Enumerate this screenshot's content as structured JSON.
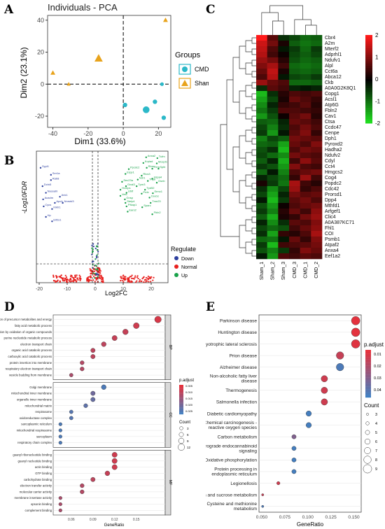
{
  "panel_labels": {
    "a": "A",
    "b": "B",
    "c": "C",
    "d": "D",
    "e": "E"
  },
  "colors": {
    "cmd": "#2bb8c8",
    "sham": "#e8a31c",
    "down": "#2d3f9e",
    "normal": "#e8201e",
    "up": "#19a24a",
    "heat_low": "#22e822",
    "heat_mid": "#000000",
    "heat_high": "#ff1a1a",
    "padj_low": "#e8303a",
    "padj_high": "#3b82c6"
  },
  "chart_data": [
    {
      "id": "pca",
      "type": "scatter",
      "title": "Individuals - PCA",
      "xlabel": "Dim1 (33.6%)",
      "ylabel": "Dim2 (23.1%)",
      "xlim": [
        -43,
        27
      ],
      "ylim": [
        -27,
        43
      ],
      "xticks": [
        -40,
        -20,
        0,
        20
      ],
      "yticks": [
        -20,
        0,
        20,
        40
      ],
      "legend_title": "Groups",
      "series": [
        {
          "name": "CMD",
          "shape": "circle",
          "points": [
            [
              1,
              -13
            ],
            [
              13,
              -16
            ],
            [
              18,
              -11
            ],
            [
              23,
              -21
            ],
            [
              22,
              0
            ]
          ],
          "sizes": [
            3,
            6,
            3,
            3,
            2
          ]
        },
        {
          "name": "Sham",
          "shape": "triangle",
          "points": [
            [
              -14,
              16
            ],
            [
              -40,
              7
            ],
            [
              -31,
              0
            ],
            [
              24,
              40
            ]
          ],
          "sizes": [
            7,
            3,
            2,
            3
          ]
        }
      ]
    },
    {
      "id": "volcano",
      "type": "scatter",
      "xlabel": "Log2FC",
      "ylabel": "-Log10FDR",
      "xlim": [
        -21,
        26
      ],
      "ylim": [
        0,
        30
      ],
      "xticks": [
        -20,
        -10,
        0,
        10,
        20
      ],
      "legend_title": "Regulate",
      "legend": [
        "Down",
        "Normal",
        "Up"
      ],
      "down_labels": [
        {
          "t": "Syyt1",
          "x": -19.5,
          "y": 26.2
        },
        {
          "t": "Ser1a",
          "x": -15.8,
          "y": 24.6
        },
        {
          "t": "Rab8",
          "x": -15.8,
          "y": 23.4
        },
        {
          "t": "Dctn5",
          "x": -18.8,
          "y": 22.0
        },
        {
          "t": "Naceahl",
          "x": -17.6,
          "y": 20.5
        },
        {
          "t": "Acadm",
          "x": -18.6,
          "y": 19.0
        },
        {
          "t": "Ank1",
          "x": -12.6,
          "y": 19.6
        },
        {
          "t": "Apoh",
          "x": -14.4,
          "y": 18.2
        },
        {
          "t": "Cycs",
          "x": -18.4,
          "y": 17.4
        },
        {
          "t": "Kiktr1",
          "x": -15.4,
          "y": 16.8
        },
        {
          "t": "Nnrstd3",
          "x": -11.6,
          "y": 18.2
        },
        {
          "t": "Hp",
          "x": -17.6,
          "y": 15.0
        },
        {
          "t": "Eif2s1",
          "x": -15.4,
          "y": 14.0
        }
      ],
      "up_labels": [
        {
          "t": "Tufm",
          "x": 22.2,
          "y": 28.4
        },
        {
          "t": "Anxa2",
          "x": 18.2,
          "y": 28.6
        },
        {
          "t": "Krpiad",
          "x": 17.2,
          "y": 27.3
        },
        {
          "t": "Mcept1",
          "x": 22.0,
          "y": 27.2
        },
        {
          "t": "Rbm",
          "x": 18.4,
          "y": 26.2
        },
        {
          "t": "Ppcdc2",
          "x": 12.0,
          "y": 25.9
        },
        {
          "t": "Pem",
          "x": 20.4,
          "y": 26.0
        },
        {
          "t": "Spib",
          "x": 22.6,
          "y": 26.0
        },
        {
          "t": "Erpp1",
          "x": 10.8,
          "y": 24.8
        },
        {
          "t": "Rtcs3",
          "x": 16.6,
          "y": 24.4
        },
        {
          "t": "Ndr1",
          "x": 15.2,
          "y": 23.5
        },
        {
          "t": "Hspa4",
          "x": 20.4,
          "y": 23.7
        },
        {
          "t": "Sec23a",
          "x": 9.6,
          "y": 23.0
        },
        {
          "t": "Trip6",
          "x": 18.8,
          "y": 23.2
        },
        {
          "t": "Gsnb",
          "x": 22.0,
          "y": 22.8
        },
        {
          "t": "Gnal3",
          "x": 11.0,
          "y": 22.0
        },
        {
          "t": "Tpm3",
          "x": 14.8,
          "y": 22.0
        },
        {
          "t": "Hvmps",
          "x": 9.0,
          "y": 21.2
        },
        {
          "t": "Tpd52",
          "x": 17.8,
          "y": 21.2
        },
        {
          "t": "Ubtf",
          "x": 11.2,
          "y": 20.5
        },
        {
          "t": "Prdx",
          "x": 16.6,
          "y": 20.3
        },
        {
          "t": "Srmc1",
          "x": 20.6,
          "y": 20.4
        },
        {
          "t": "Vat1",
          "x": 9.0,
          "y": 19.8
        },
        {
          "t": "Gnsp",
          "x": 10.6,
          "y": 19.0
        },
        {
          "t": "Cee1c",
          "x": 19.4,
          "y": 19.4
        },
        {
          "t": "Stelp4",
          "x": 10.8,
          "y": 18.2
        },
        {
          "t": "Tmn23",
          "x": 19.8,
          "y": 18.2
        },
        {
          "t": "Pfkap1",
          "x": 11.2,
          "y": 17.4
        },
        {
          "t": "Sparc",
          "x": 16.8,
          "y": 17.2
        },
        {
          "t": "Ears2",
          "x": 11.6,
          "y": 16.2
        },
        {
          "t": "Fbln2",
          "x": 20.4,
          "y": 15.6
        }
      ],
      "threshold_fdr": 1.3,
      "fc_lines": [
        -1,
        1
      ]
    },
    {
      "id": "heatmap",
      "type": "heatmap",
      "columns": [
        "Sham_1",
        "Sham_2",
        "Sham_3",
        "CMD_3",
        "CMD_1",
        "CMD_2"
      ],
      "rows": [
        "Cbr4",
        "A2m",
        "Mterf2",
        "Adprhl1",
        "Ndufv1",
        "Alpl",
        "Cct6a",
        "Abca12",
        "Ckb",
        "A0A0G2K8Q1",
        "Copg1",
        "Acsl1",
        "Atp6G",
        "Fbln2",
        "Cav1",
        "Ctsa",
        "Ccdc47",
        "Cenpe",
        "Dph1",
        "Pyroxd2",
        "Hadha2",
        "Ndufv2",
        "Cdyl",
        "Cct4",
        "Hmgcs2",
        "Cog4",
        "Popdc2",
        "Cdc42",
        "Prorsd1",
        "Dpp4",
        "Mthfd1",
        "Arfgef1",
        "Clic4",
        "A0A387KC71",
        "Fhl1",
        "COI",
        "Psmb1",
        "Atpaf2",
        "Anxa4",
        "Eef1a2"
      ],
      "color_range": [
        -2,
        2
      ],
      "colorbar_ticks": [
        2,
        1,
        0,
        -1,
        -2
      ],
      "values": [
        [
          2.0,
          0.7,
          -0.4,
          -0.6,
          -0.9,
          -0.8
        ],
        [
          1.6,
          0.9,
          0.2,
          -0.8,
          -1.0,
          -0.9
        ],
        [
          1.5,
          0.6,
          -0.2,
          -0.5,
          -0.9,
          -0.5
        ],
        [
          1.4,
          0.5,
          0.1,
          -0.6,
          -0.8,
          -0.6
        ],
        [
          1.2,
          0.9,
          0.3,
          -0.7,
          -0.9,
          -0.8
        ],
        [
          1.0,
          1.3,
          0.5,
          -0.9,
          -1.0,
          -0.9
        ],
        [
          0.8,
          1.5,
          0.2,
          -0.8,
          -0.9,
          -0.8
        ],
        [
          0.6,
          1.4,
          -0.2,
          -0.6,
          -0.7,
          -0.5
        ],
        [
          1.2,
          0.8,
          0.6,
          -0.9,
          -0.9,
          -0.8
        ],
        [
          -0.4,
          0.7,
          0.5,
          -0.3,
          -0.2,
          -0.3
        ],
        [
          -1.6,
          -0.4,
          0.3,
          0.6,
          0.5,
          0.6
        ],
        [
          -1.4,
          -0.6,
          0.2,
          0.8,
          0.6,
          0.4
        ],
        [
          -1.2,
          -0.3,
          0.4,
          0.5,
          0.7,
          0.3
        ],
        [
          -1.0,
          -0.5,
          0.6,
          0.6,
          0.5,
          0.4
        ],
        [
          -1.3,
          -0.7,
          0.1,
          0.7,
          0.9,
          0.3
        ],
        [
          -0.8,
          -0.9,
          -0.3,
          0.8,
          0.7,
          0.5
        ],
        [
          -0.6,
          -1.1,
          -0.4,
          0.6,
          0.9,
          0.6
        ],
        [
          -0.5,
          -1.3,
          -0.2,
          0.7,
          1.0,
          0.4
        ],
        [
          -1.1,
          -0.6,
          -0.8,
          0.9,
          0.8,
          0.7
        ],
        [
          -0.9,
          -0.8,
          -1.4,
          0.8,
          0.6,
          1.0
        ],
        [
          -0.7,
          -0.4,
          -1.6,
          0.6,
          0.9,
          0.8
        ],
        [
          -0.6,
          -0.9,
          -1.2,
          0.9,
          0.7,
          0.6
        ],
        [
          -0.8,
          -0.3,
          -1.5,
          0.5,
          1.1,
          0.7
        ],
        [
          -0.5,
          -0.7,
          -1.3,
          1.0,
          0.6,
          0.5
        ],
        [
          -0.9,
          -0.2,
          -1.1,
          0.6,
          0.8,
          0.9
        ],
        [
          -0.3,
          -0.6,
          -0.9,
          0.4,
          1.2,
          0.5
        ],
        [
          0.2,
          -0.5,
          -1.0,
          1.3,
          0.5,
          0.3
        ],
        [
          -0.4,
          -1.2,
          -0.6,
          1.2,
          0.4,
          0.6
        ],
        [
          -0.6,
          -1.4,
          -0.3,
          0.9,
          0.7,
          0.8
        ],
        [
          -0.2,
          -1.6,
          -0.5,
          0.7,
          0.9,
          0.6
        ],
        [
          -0.7,
          -1.3,
          0.1,
          0.6,
          0.8,
          0.9
        ],
        [
          -0.5,
          -1.1,
          0.3,
          0.8,
          0.5,
          1.1
        ],
        [
          -0.8,
          -1.5,
          0.2,
          0.4,
          0.9,
          1.2
        ],
        [
          -0.3,
          -1.2,
          -0.4,
          0.7,
          0.6,
          1.0
        ],
        [
          -0.6,
          -0.9,
          -0.7,
          0.5,
          0.8,
          1.1
        ],
        [
          -0.4,
          -1.4,
          0.4,
          0.3,
          0.6,
          1.3
        ],
        [
          -0.9,
          -1.0,
          -0.2,
          0.8,
          0.4,
          1.0
        ],
        [
          -0.5,
          -1.6,
          0.5,
          0.6,
          0.7,
          0.9
        ],
        [
          -0.7,
          -1.1,
          -0.5,
          0.4,
          1.0,
          0.8
        ],
        [
          -0.2,
          -1.3,
          0.6,
          0.5,
          0.7,
          0.6
        ]
      ]
    },
    {
      "id": "go_dotplot",
      "type": "scatter",
      "xlabel": "GeneRatio",
      "xlim": [
        0.035,
        0.19
      ],
      "xticks": [
        0.06,
        0.09,
        0.12,
        0.15
      ],
      "legend_title": "p.adjust",
      "colorbar_ticks": [
        "0.005",
        "0.010",
        "0.015",
        "0.020",
        "0.025"
      ],
      "size_title": "Count",
      "size_ticks": [
        "3",
        "6",
        "9",
        "12"
      ],
      "facets": [
        {
          "strip": "BP",
          "terms": [
            {
              "t": "generation of precursor metabolites and energy",
              "x": 0.18,
              "c": 0.1,
              "s": 12
            },
            {
              "t": "fatty acid metabolic process",
              "x": 0.15,
              "c": 0.15,
              "s": 10
            },
            {
              "t": "energy derivation by oxidation of organic compounds",
              "x": 0.135,
              "c": 0.2,
              "s": 9
            },
            {
              "t": "purine nucleotide metabolic process",
              "x": 0.12,
              "c": 0.2,
              "s": 8
            },
            {
              "t": "electron transport chain",
              "x": 0.105,
              "c": 0.25,
              "s": 7
            },
            {
              "t": "organic acid catabolic process",
              "x": 0.09,
              "c": 0.25,
              "s": 6
            },
            {
              "t": "carboxylic acid catabolic process",
              "x": 0.09,
              "c": 0.25,
              "s": 6
            },
            {
              "t": "protein insertion into membrane",
              "x": 0.075,
              "c": 0.3,
              "s": 5
            },
            {
              "t": "respiratory electron transport chain",
              "x": 0.075,
              "c": 0.3,
              "s": 5
            },
            {
              "t": "vesicle budding from membrane",
              "x": 0.06,
              "c": 0.35,
              "s": 4
            }
          ]
        },
        {
          "strip": "CC",
          "terms": [
            {
              "t": "Golgi membrane",
              "x": 0.105,
              "c": 0.9,
              "s": 7
            },
            {
              "t": "mitochondrial inner membrane",
              "x": 0.09,
              "c": 0.7,
              "s": 6
            },
            {
              "t": "organelle inner membrane",
              "x": 0.09,
              "c": 0.75,
              "s": 6
            },
            {
              "t": "mitochondrial matrix",
              "x": 0.08,
              "c": 0.8,
              "s": 5
            },
            {
              "t": "respirasome",
              "x": 0.06,
              "c": 0.85,
              "s": 4
            },
            {
              "t": "oxidoreductase complex",
              "x": 0.06,
              "c": 0.85,
              "s": 4
            },
            {
              "t": "sarcoplasmic reticulum",
              "x": 0.045,
              "c": 0.9,
              "s": 3
            },
            {
              "t": "mitochondrial respirasome",
              "x": 0.045,
              "c": 0.9,
              "s": 3
            },
            {
              "t": "sarcoplasm",
              "x": 0.045,
              "c": 0.9,
              "s": 3
            },
            {
              "t": "respiratory chain complex",
              "x": 0.045,
              "c": 0.9,
              "s": 3
            }
          ]
        },
        {
          "strip": "MF",
          "terms": [
            {
              "t": "guanyl ribonucleotide binding",
              "x": 0.12,
              "c": 0.15,
              "s": 8
            },
            {
              "t": "guanyl nucleotide binding",
              "x": 0.12,
              "c": 0.15,
              "s": 8
            },
            {
              "t": "actin binding",
              "x": 0.12,
              "c": 0.15,
              "s": 8
            },
            {
              "t": "GTP binding",
              "x": 0.11,
              "c": 0.2,
              "s": 7
            },
            {
              "t": "carbohydrate binding",
              "x": 0.09,
              "c": 0.25,
              "s": 6
            },
            {
              "t": "electron transfer activity",
              "x": 0.075,
              "c": 0.3,
              "s": 5
            },
            {
              "t": "molecular carrier activity",
              "x": 0.075,
              "c": 0.3,
              "s": 5
            },
            {
              "t": "membrane insertase activity",
              "x": 0.045,
              "c": 0.35,
              "s": 3
            },
            {
              "t": "opsonin binding",
              "x": 0.045,
              "c": 0.35,
              "s": 3
            },
            {
              "t": "complement binding",
              "x": 0.045,
              "c": 0.35,
              "s": 3
            }
          ]
        }
      ]
    },
    {
      "id": "kegg_dotplot",
      "type": "scatter",
      "xlabel": "GeneRatio",
      "xlim": [
        0.047,
        0.158
      ],
      "xticks": [
        0.05,
        0.075,
        0.1,
        0.125,
        0.15
      ],
      "xtick_labels": [
        "0.050",
        "0.075",
        "0.100",
        "0.125",
        "0.150"
      ],
      "legend_title": "p.adjust",
      "colorbar_ticks": [
        "0.01",
        "0.02",
        "0.03",
        "0.04"
      ],
      "colorbar_range": [
        0.004,
        0.044
      ],
      "size_title": "Count",
      "size_ticks": [
        "3",
        "4",
        "5",
        "6",
        "7",
        "8",
        "9"
      ],
      "terms": [
        {
          "t": "Parkinson disease",
          "x": 0.152,
          "p": 0.005,
          "s": 9
        },
        {
          "t": "Huntington disease",
          "x": 0.152,
          "p": 0.005,
          "s": 9
        },
        {
          "t": "Amyotrophic lateral sclerosis",
          "x": 0.152,
          "p": 0.006,
          "s": 9
        },
        {
          "t": "Prion disease",
          "x": 0.135,
          "p": 0.012,
          "s": 8
        },
        {
          "t": "Alzheimer disease",
          "x": 0.135,
          "p": 0.04,
          "s": 8
        },
        {
          "t": "Non-alcoholic fatty liver disease",
          "x": 0.118,
          "p": 0.01,
          "s": 7
        },
        {
          "t": "Thermogenesis",
          "x": 0.118,
          "p": 0.01,
          "s": 7
        },
        {
          "t": "Salmonella infection",
          "x": 0.118,
          "p": 0.01,
          "s": 7
        },
        {
          "t": "Diabetic cardiomyopathy",
          "x": 0.101,
          "p": 0.042,
          "s": 6
        },
        {
          "t": "Chemical carcinogenesis - reactive oxygen species",
          "x": 0.101,
          "p": 0.042,
          "s": 6
        },
        {
          "t": "Carbon metabolism",
          "x": 0.085,
          "p": 0.028,
          "s": 5
        },
        {
          "t": "Retrograde endocannabinoid signaling",
          "x": 0.085,
          "p": 0.042,
          "s": 5
        },
        {
          "t": "Oxidative phosphorylation",
          "x": 0.085,
          "p": 0.042,
          "s": 5
        },
        {
          "t": "Protein processing in endoplasmic reticulum",
          "x": 0.085,
          "p": 0.042,
          "s": 5
        },
        {
          "t": "Legionellosis",
          "x": 0.068,
          "p": 0.01,
          "s": 4
        },
        {
          "t": "Starch and sucrose metabolism",
          "x": 0.051,
          "p": 0.012,
          "s": 3
        },
        {
          "t": "Cysteine and methionine metabolism",
          "x": 0.051,
          "p": 0.04,
          "s": 3
        }
      ]
    }
  ]
}
